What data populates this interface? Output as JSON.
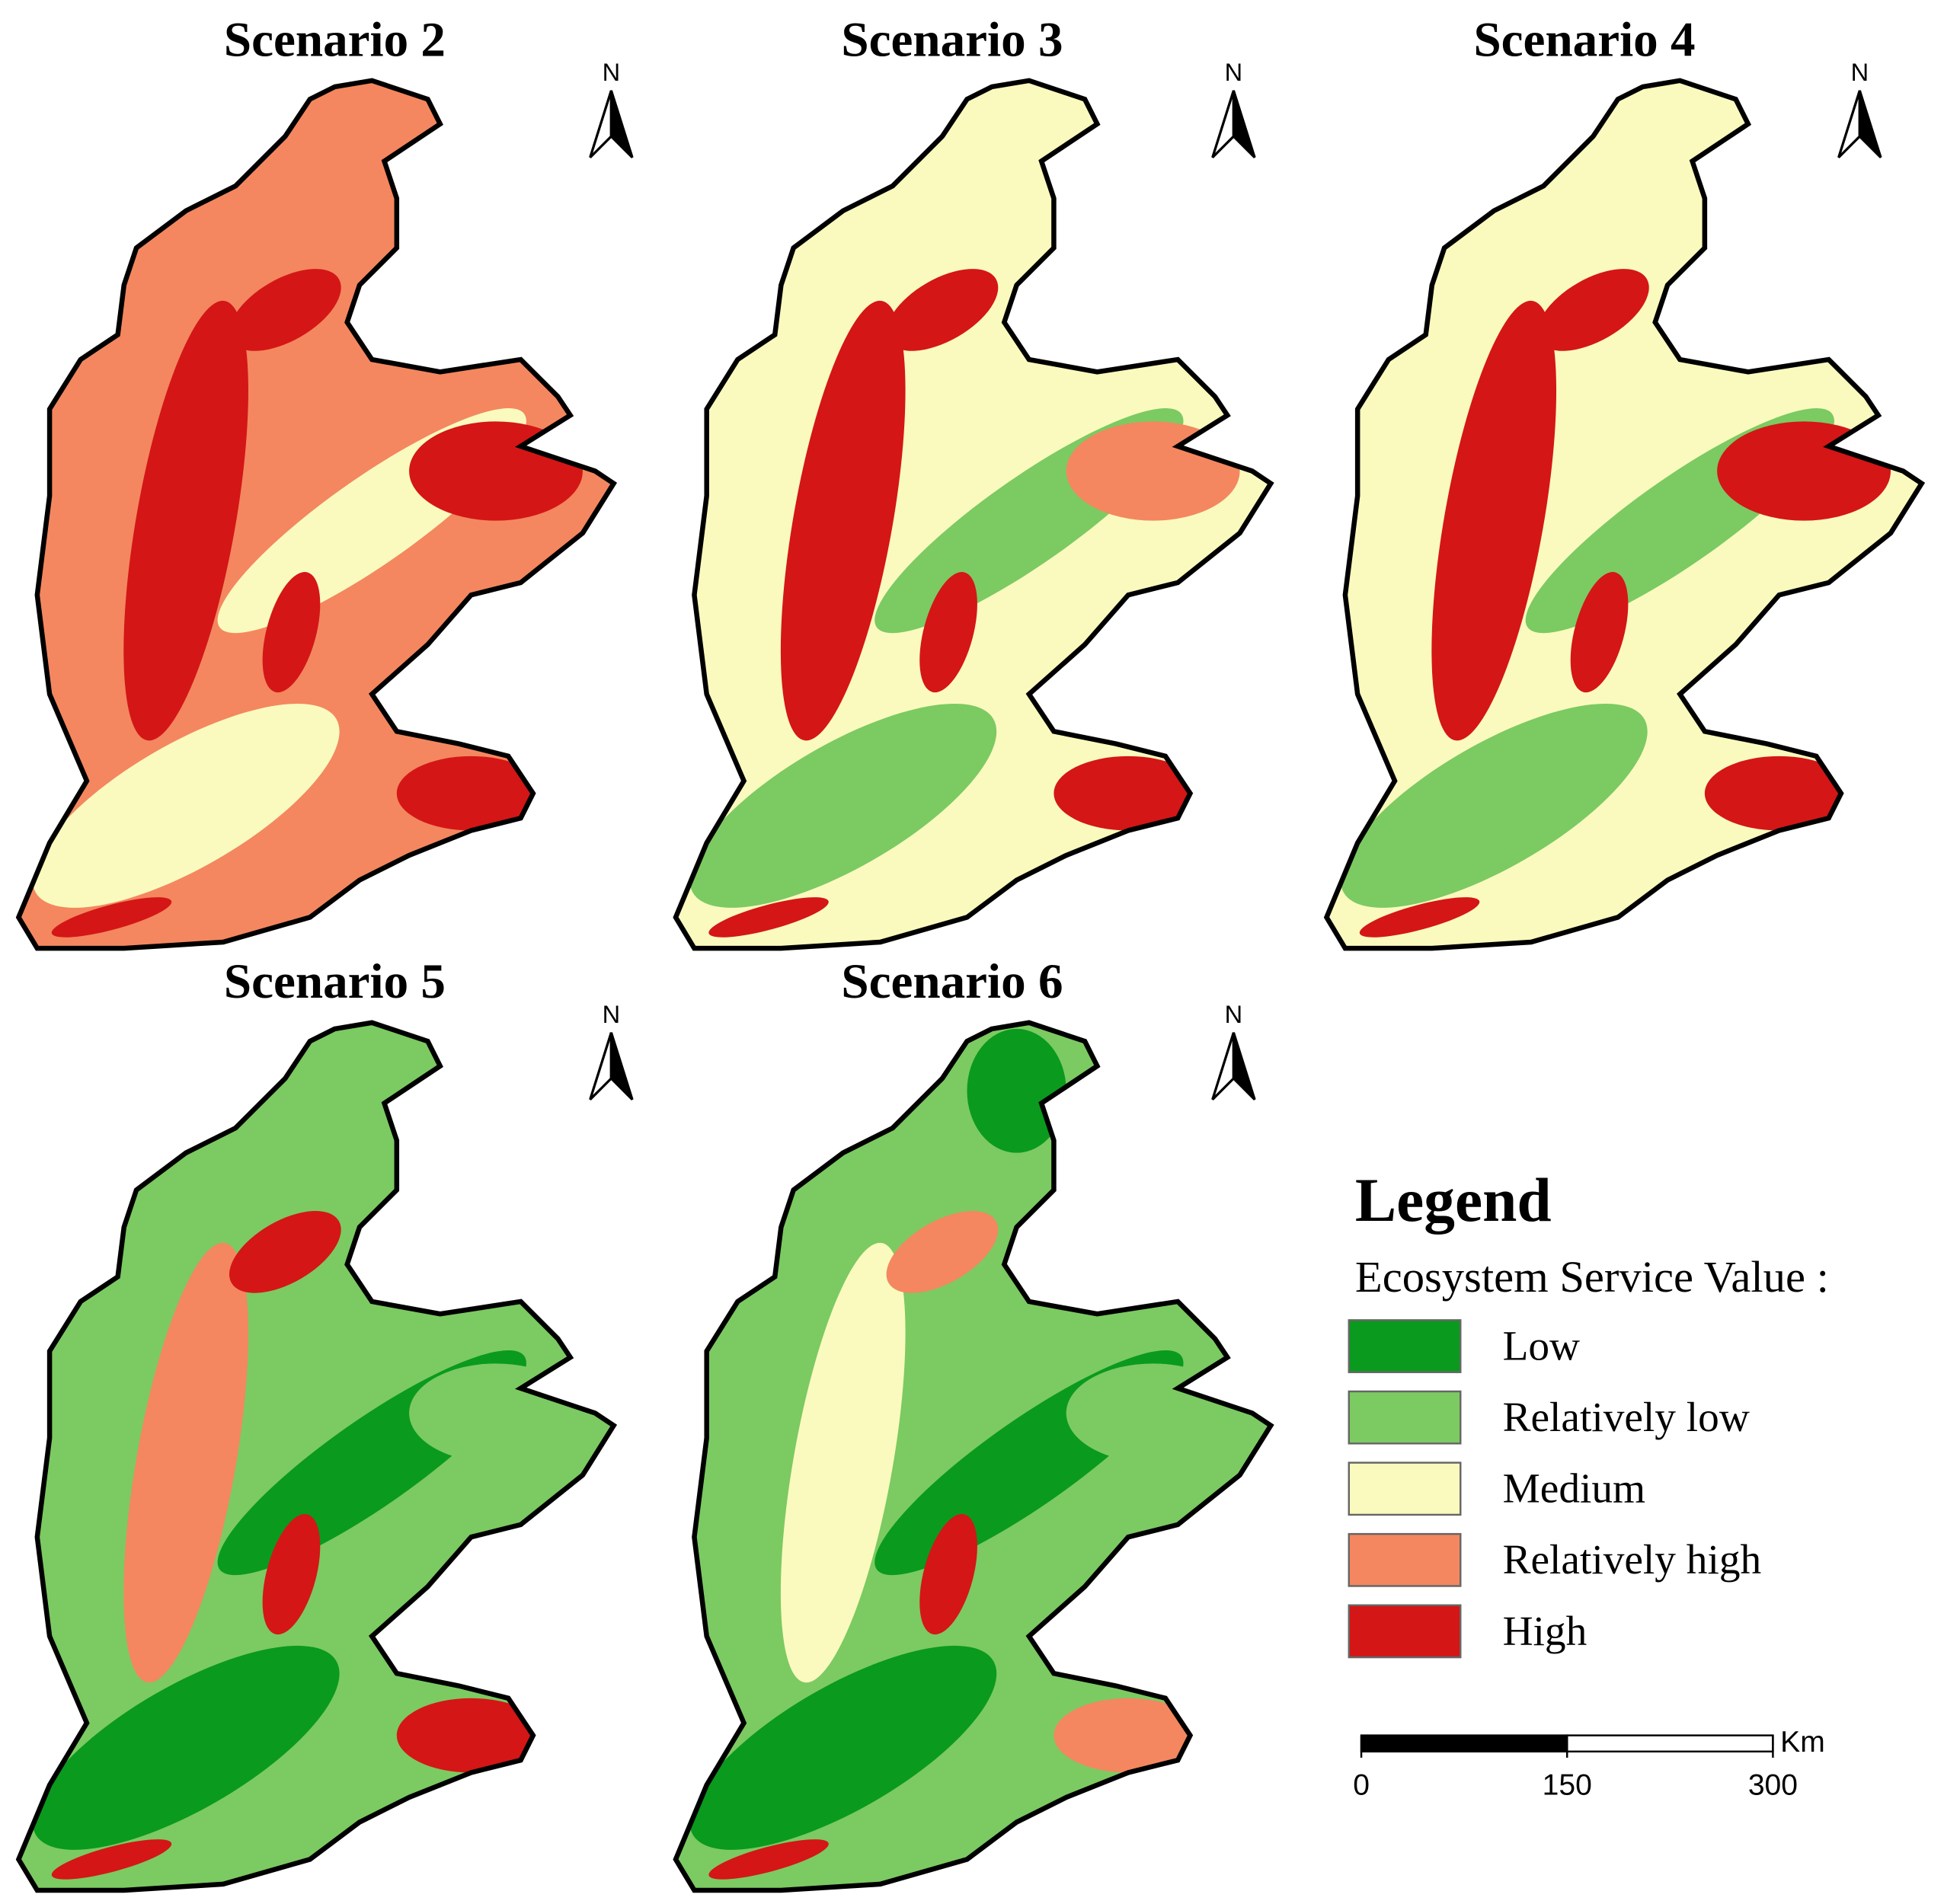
{
  "panels": [
    {
      "title": "Scenario 2",
      "north": "N"
    },
    {
      "title": "Scenario 3",
      "north": "N"
    },
    {
      "title": "Scenario 4",
      "north": "N"
    },
    {
      "title": "Scenario 5",
      "north": "N"
    },
    {
      "title": "Scenario 6",
      "north": "N"
    }
  ],
  "legend": {
    "title": "Legend",
    "subtitle": "Ecosystem Service Value :",
    "classes": [
      {
        "label": "Low",
        "color": "#0a9a1e"
      },
      {
        "label": "Relatively low",
        "color": "#7cca62"
      },
      {
        "label": "Medium",
        "color": "#fafabe"
      },
      {
        "label": "Relatively high",
        "color": "#f4875f"
      },
      {
        "label": "High",
        "color": "#d41616"
      }
    ]
  },
  "scale_bar": {
    "ticks": [
      0,
      150,
      300
    ],
    "unit": "Km"
  }
}
